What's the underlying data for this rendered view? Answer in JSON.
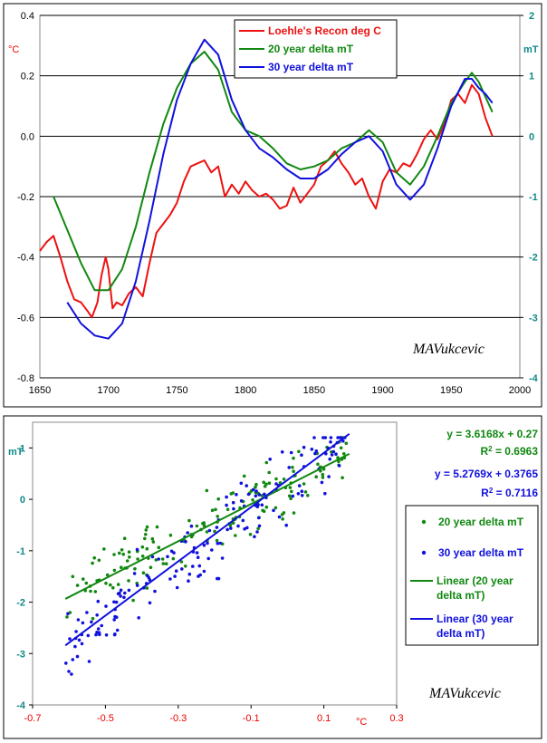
{
  "chart_data": [
    {
      "type": "line",
      "title": "",
      "xlabel": "",
      "ylabel_left": "°C",
      "ylabel_right": "mT",
      "xlim": [
        1650,
        2000
      ],
      "ylim_left": [
        -0.8,
        0.4
      ],
      "ylim_right": [
        -4,
        2
      ],
      "xticks": [
        "1650",
        "1700",
        "1750",
        "1800",
        "1850",
        "1900",
        "1950",
        "2000"
      ],
      "yticks_left": [
        "0.4",
        "0.2",
        "0.0",
        "-0.2",
        "-0.4",
        "-0.6",
        "-0.8"
      ],
      "yticks_right": [
        "2",
        "1",
        "0",
        "-1",
        "-2",
        "-3",
        "-4"
      ],
      "legend_position": "top-center",
      "watermark": "MAVukcevic",
      "series": [
        {
          "name": "Loehle's Recon deg C",
          "axis": "left",
          "color": "#ee1111",
          "x": [
            1650,
            1655,
            1660,
            1665,
            1670,
            1675,
            1680,
            1685,
            1688,
            1692,
            1695,
            1698,
            1700,
            1703,
            1706,
            1710,
            1715,
            1720,
            1725,
            1730,
            1735,
            1740,
            1745,
            1750,
            1755,
            1760,
            1765,
            1770,
            1775,
            1780,
            1785,
            1790,
            1795,
            1800,
            1805,
            1810,
            1815,
            1820,
            1825,
            1830,
            1835,
            1840,
            1845,
            1850,
            1855,
            1860,
            1865,
            1870,
            1875,
            1880,
            1885,
            1890,
            1895,
            1900,
            1905,
            1910,
            1915,
            1920,
            1925,
            1930,
            1935,
            1940,
            1945,
            1950,
            1955,
            1960,
            1965,
            1970,
            1975,
            1980
          ],
          "y": [
            -0.38,
            -0.35,
            -0.33,
            -0.4,
            -0.48,
            -0.54,
            -0.55,
            -0.58,
            -0.6,
            -0.55,
            -0.46,
            -0.4,
            -0.44,
            -0.57,
            -0.55,
            -0.56,
            -0.52,
            -0.5,
            -0.53,
            -0.42,
            -0.32,
            -0.29,
            -0.26,
            -0.22,
            -0.15,
            -0.1,
            -0.09,
            -0.08,
            -0.12,
            -0.1,
            -0.2,
            -0.16,
            -0.19,
            -0.15,
            -0.18,
            -0.2,
            -0.19,
            -0.21,
            -0.24,
            -0.23,
            -0.17,
            -0.22,
            -0.19,
            -0.16,
            -0.1,
            -0.08,
            -0.05,
            -0.09,
            -0.12,
            -0.16,
            -0.14,
            -0.2,
            -0.24,
            -0.15,
            -0.11,
            -0.12,
            -0.09,
            -0.1,
            -0.06,
            -0.01,
            0.02,
            -0.01,
            0.04,
            0.12,
            0.14,
            0.11,
            0.17,
            0.14,
            0.06,
            0.0
          ]
        },
        {
          "name": "20 year delta mT",
          "axis": "right",
          "color": "#118811",
          "x": [
            1660,
            1670,
            1680,
            1690,
            1700,
            1710,
            1720,
            1730,
            1740,
            1750,
            1760,
            1770,
            1780,
            1790,
            1800,
            1810,
            1820,
            1830,
            1840,
            1850,
            1860,
            1870,
            1880,
            1890,
            1900,
            1910,
            1920,
            1930,
            1940,
            1950,
            1960,
            1965,
            1970,
            1975,
            1980
          ],
          "y": [
            -1.0,
            -1.55,
            -2.1,
            -2.55,
            -2.55,
            -2.2,
            -1.5,
            -0.6,
            0.2,
            0.8,
            1.2,
            1.4,
            1.1,
            0.4,
            0.1,
            0.0,
            -0.2,
            -0.45,
            -0.55,
            -0.5,
            -0.4,
            -0.2,
            -0.1,
            0.1,
            -0.1,
            -0.6,
            -0.8,
            -0.5,
            0.0,
            0.55,
            0.9,
            1.05,
            0.9,
            0.65,
            0.4
          ]
        },
        {
          "name": "30 year delta mT",
          "axis": "right",
          "color": "#1111dd",
          "x": [
            1670,
            1680,
            1690,
            1700,
            1710,
            1720,
            1730,
            1740,
            1750,
            1760,
            1770,
            1780,
            1790,
            1800,
            1810,
            1820,
            1830,
            1840,
            1850,
            1860,
            1870,
            1880,
            1890,
            1900,
            1910,
            1920,
            1930,
            1940,
            1950,
            1960,
            1965,
            1970,
            1975,
            1980
          ],
          "y": [
            -2.75,
            -3.1,
            -3.3,
            -3.35,
            -3.1,
            -2.4,
            -1.4,
            -0.3,
            0.6,
            1.2,
            1.6,
            1.35,
            0.6,
            0.1,
            -0.2,
            -0.35,
            -0.55,
            -0.7,
            -0.7,
            -0.55,
            -0.3,
            -0.1,
            0.0,
            -0.25,
            -0.8,
            -1.05,
            -0.8,
            -0.2,
            0.5,
            0.95,
            0.95,
            0.8,
            0.7,
            0.55
          ]
        }
      ]
    },
    {
      "type": "scatter",
      "title": "",
      "xlabel": "°C",
      "ylabel": "mT",
      "xlim": [
        -0.7,
        0.3
      ],
      "ylim": [
        -4,
        1.5
      ],
      "xticks": [
        "-0.7",
        "-0.5",
        "-0.3",
        "-0.1",
        "0.1",
        "0.3"
      ],
      "yticks": [
        "1",
        "0",
        "-1",
        "-2",
        "-3",
        "-4"
      ],
      "legend_position": "right",
      "watermark": "MAVukcevic",
      "equations": [
        {
          "text": "y = 3.6168x + 0.27",
          "r2": "R",
          "r2_sup": "2",
          "r2_value": " = 0.6963",
          "color": "#118811"
        },
        {
          "text": "y = 5.2769x + 0.3765",
          "r2": "R",
          "r2_sup": "2",
          "r2_value": " = 0.7116",
          "color": "#1111dd"
        }
      ],
      "series": [
        {
          "name": "20 year delta mT",
          "color": "#118811",
          "slope": 3.6168,
          "intercept": 0.27,
          "spread": 0.45,
          "count": 170,
          "xmin": -0.61,
          "xmax": 0.17
        },
        {
          "name": "30 year delta mT",
          "color": "#1111dd",
          "slope": 5.2769,
          "intercept": 0.3765,
          "spread": 0.55,
          "count": 170,
          "xmin": -0.61,
          "xmax": 0.17
        }
      ],
      "trendlines": [
        {
          "name": "Linear (20 year delta mT)",
          "color": "#118811",
          "slope": 3.6168,
          "intercept": 0.27,
          "x": [
            -0.61,
            0.17
          ]
        },
        {
          "name": "Linear (30 year delta mT)",
          "color": "#1111dd",
          "slope": 5.2769,
          "intercept": 0.3765,
          "x": [
            -0.61,
            0.17
          ]
        }
      ],
      "legend": [
        {
          "label": "20 year delta mT",
          "kind": "marker",
          "color": "#118811"
        },
        {
          "label": "30 year delta mT",
          "kind": "marker",
          "color": "#1111dd"
        },
        {
          "label": "Linear (20 year delta mT)",
          "kind": "line",
          "color": "#118811"
        },
        {
          "label": "Linear (30 year delta mT)",
          "kind": "line",
          "color": "#1111dd"
        }
      ]
    }
  ]
}
